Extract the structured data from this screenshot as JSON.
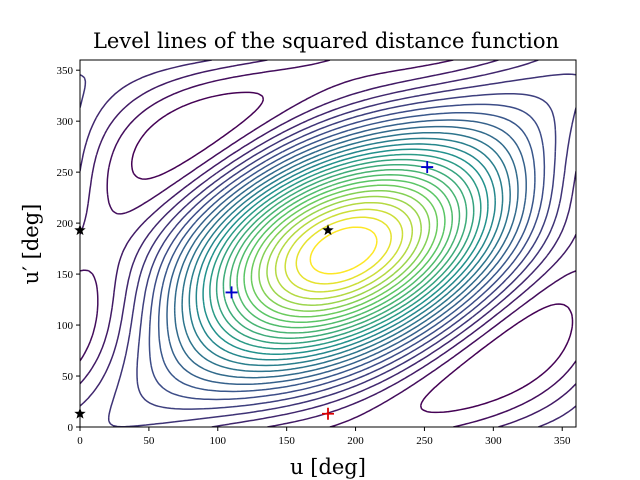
{
  "chart_data": {
    "type": "contour",
    "title": "Level lines of the squared distance function",
    "x_label": "u [deg]",
    "y_label": "u′ [deg]",
    "xlim": [
      0,
      360
    ],
    "ylim": [
      0,
      360
    ],
    "xticks": [
      0,
      50,
      100,
      150,
      200,
      250,
      300,
      350
    ],
    "yticks": [
      0,
      50,
      100,
      150,
      200,
      250,
      300,
      350
    ],
    "series": [
      {
        "name": "minima",
        "marker": "plus",
        "color": "#0000cc",
        "x": [
          110,
          252
        ],
        "y": [
          132,
          255
        ]
      },
      {
        "name": "maximum",
        "marker": "plus",
        "color": "#dd0000",
        "x": [
          180
        ],
        "y": [
          13
        ]
      },
      {
        "name": "saddles",
        "marker": "star",
        "color": "#000000",
        "x": [
          0,
          0,
          180
        ],
        "y": [
          13,
          193,
          193
        ]
      }
    ]
  }
}
